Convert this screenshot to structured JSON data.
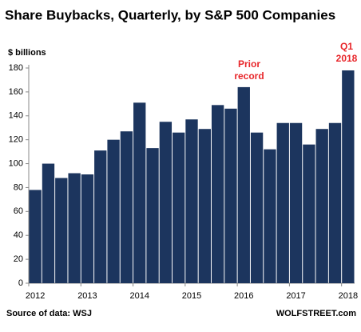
{
  "chart_data": {
    "type": "bar",
    "title": "Share Buybacks, Quarterly, by S&P 500 Companies",
    "y_label": "$ billions",
    "categories": [
      "2012",
      null,
      null,
      null,
      "2013",
      null,
      null,
      null,
      "2014",
      null,
      null,
      null,
      "2015",
      null,
      null,
      null,
      "2016",
      null,
      null,
      null,
      "2017",
      null,
      null,
      null,
      "2018"
    ],
    "values": [
      78,
      100,
      88,
      92,
      91,
      111,
      120,
      127,
      151,
      113,
      135,
      126,
      137,
      129,
      149,
      146,
      164,
      126,
      112,
      134,
      134,
      116,
      129,
      134,
      178
    ],
    "color": "#1c355e",
    "ylim": [
      0,
      180
    ],
    "yticks": [
      0,
      20,
      40,
      60,
      80,
      100,
      120,
      140,
      160,
      180
    ],
    "grid": false,
    "annotations": [
      [
        "Prior",
        "record"
      ],
      [
        "Q1",
        "2018"
      ]
    ],
    "source": "Source of data: WSJ",
    "credit": "WOLFSTREET.com"
  }
}
